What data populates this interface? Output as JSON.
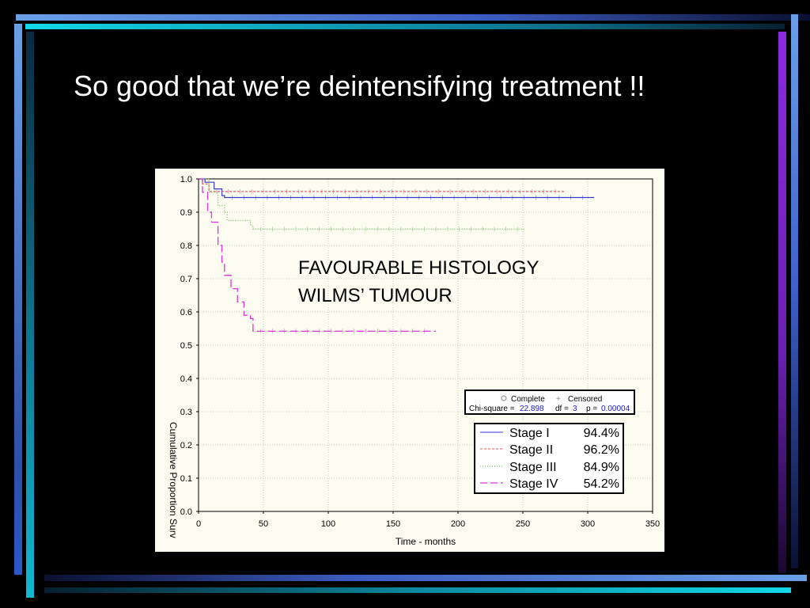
{
  "slide": {
    "title": "So good that we’re deintensifying treatment !!"
  },
  "colors": {
    "background": "#000000",
    "stripe_light": "#6aa0e8",
    "stripe_dark": "#1a2a66",
    "stripe_cyan": "#11d8e8",
    "stripe_purple": "#8a2be2",
    "chart_bg": "#fcfbf0",
    "stage_i": "#3a3acc",
    "stage_ii": "#e05050",
    "stage_iii": "#66bb55",
    "stage_iv": "#dd33dd"
  },
  "chart_data": {
    "type": "line",
    "title": "FAVOURABLE HISTOLOGY\nWILMS’ TUMOUR",
    "title_lines": [
      "FAVOURABLE HISTOLOGY",
      "WILMS’ TUMOUR"
    ],
    "xlabel": "Time - months",
    "ylabel": "Cumulative Proportion Surv",
    "xlim": [
      0,
      350
    ],
    "ylim": [
      0,
      1
    ],
    "x_ticks": [
      "0",
      "50",
      "100",
      "150",
      "200",
      "250",
      "300",
      "350"
    ],
    "x_tick_values": [
      0,
      50,
      100,
      150,
      200,
      250,
      300,
      350
    ],
    "y_ticks": [
      "0.0",
      "0.1",
      "0.2",
      "0.3",
      "0.4",
      "0.5",
      "0.6",
      "0.7",
      "0.8",
      "0.9",
      "1.0"
    ],
    "y_tick_values": [
      0,
      0.1,
      0.2,
      0.3,
      0.4,
      0.5,
      0.6,
      0.7,
      0.8,
      0.9,
      1.0
    ],
    "grid": true,
    "stats_box": {
      "complete_label": "Complete",
      "censored_label": "Censored",
      "chi_label": "Chi-square =",
      "chi_value": "22.898",
      "df_label": "df =",
      "df_value": "3",
      "p_label": "p =",
      "p_value": "0.00004"
    },
    "series": [
      {
        "name": "Stage I",
        "pct": "94.4%",
        "x": [
          0,
          5,
          12,
          18,
          20,
          305
        ],
        "y": [
          1.0,
          0.99,
          0.97,
          0.95,
          0.944,
          0.944
        ]
      },
      {
        "name": "Stage II",
        "pct": "96.2%",
        "x": [
          0,
          3,
          8,
          283
        ],
        "y": [
          1.0,
          0.985,
          0.962,
          0.962
        ]
      },
      {
        "name": "Stage III",
        "pct": "84.9%",
        "x": [
          0,
          8,
          15,
          20,
          22,
          40,
          42,
          252
        ],
        "y": [
          1.0,
          0.96,
          0.92,
          0.9,
          0.875,
          0.86,
          0.849,
          0.849
        ]
      },
      {
        "name": "Stage IV",
        "pct": "54.2%",
        "x": [
          0,
          3,
          7,
          10,
          15,
          18,
          20,
          25,
          30,
          35,
          40,
          42,
          183
        ],
        "y": [
          1.0,
          0.96,
          0.9,
          0.87,
          0.8,
          0.75,
          0.71,
          0.67,
          0.63,
          0.59,
          0.58,
          0.542,
          0.542
        ]
      }
    ]
  }
}
